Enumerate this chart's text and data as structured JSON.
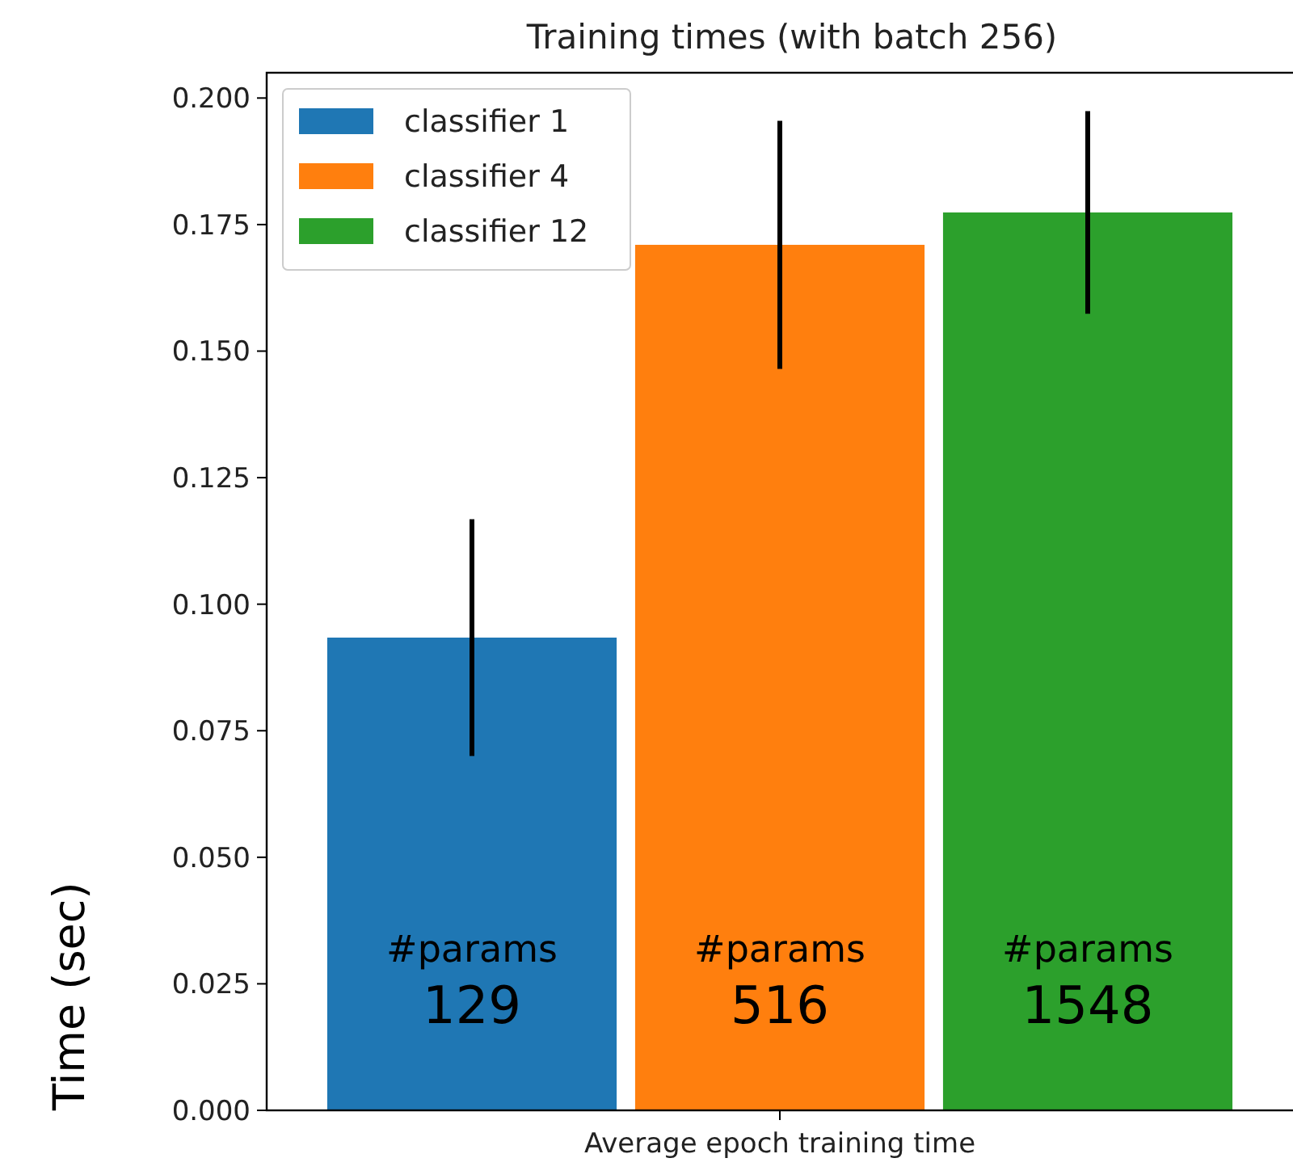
{
  "chart_data": {
    "type": "bar",
    "title": "Training times (with batch 256)",
    "ylabel": "Time (sec)",
    "xlabel": "Average epoch training time",
    "categories": [
      null
    ],
    "series": [
      {
        "name": "classifier 1",
        "color": "#1f77b4",
        "values": [
          0.0934
        ],
        "errors": [
          0.0234
        ]
      },
      {
        "name": "classifier 4",
        "color": "#ff7f0e",
        "values": [
          0.171
        ],
        "errors": [
          0.0245
        ]
      },
      {
        "name": "classifier 12",
        "color": "#2ca02c",
        "values": [
          0.1774
        ],
        "errors": [
          0.02
        ]
      }
    ],
    "ylim": [
      0,
      0.205
    ],
    "yticks": [
      {
        "value": 0,
        "label": "0.000"
      },
      {
        "value": 0.025,
        "label": "0.025"
      },
      {
        "value": 0.05,
        "label": "0.050"
      },
      {
        "value": 0.075,
        "label": "0.075"
      },
      {
        "value": 0.1,
        "label": "0.100"
      },
      {
        "value": 0.125,
        "label": "0.125"
      },
      {
        "value": 0.15,
        "label": "0.150"
      },
      {
        "value": 0.175,
        "label": "0.175"
      },
      {
        "value": 0.2,
        "label": "0.200"
      }
    ],
    "annotations": [
      "#params\n129",
      "#params\n516",
      "#params\n1548"
    ],
    "legend": "top left",
    "grid": false
  }
}
